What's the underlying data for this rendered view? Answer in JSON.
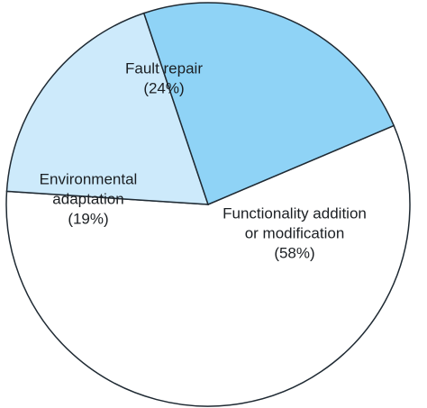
{
  "chart_data": {
    "type": "pie",
    "title": "",
    "slices": [
      {
        "label": "Functionality addition or modification",
        "label_lines": [
          "Functionality addition",
          "or modification",
          "(58%)"
        ],
        "value": 58,
        "color": "#ffffff"
      },
      {
        "label": "Environmental adaptation",
        "label_lines": [
          "Environmental",
          "adaptation",
          "(19%)"
        ],
        "value": 19,
        "color": "#cdeafb"
      },
      {
        "label": "Fault repair",
        "label_lines": [
          "Fault repair",
          "(24%)"
        ],
        "value": 24,
        "color": "#8fd3f6"
      }
    ],
    "legend": "none",
    "start_angle_deg": 67,
    "direction": "clockwise"
  }
}
